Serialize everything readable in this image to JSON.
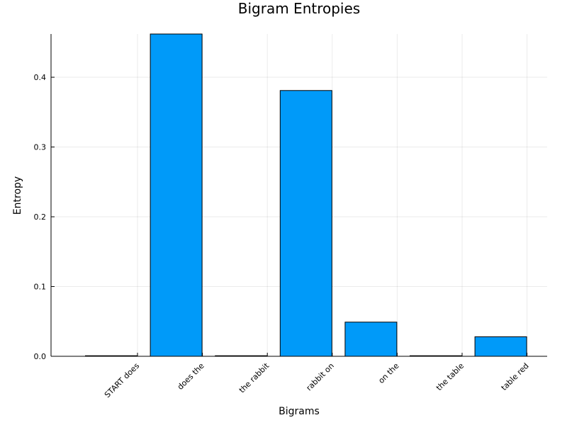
{
  "chart_data": {
    "type": "bar",
    "title": "Bigram Entropies",
    "xlabel": "Bigrams",
    "ylabel": "Entropy",
    "categories": [
      "START does",
      "does the",
      "the rabbit",
      "rabbit on",
      "on the",
      "the table",
      "table red"
    ],
    "values": [
      0.0,
      0.462,
      0.0,
      0.381,
      0.049,
      0.0,
      0.028
    ],
    "ylim": [
      0,
      0.462
    ],
    "yticks": [
      0.0,
      0.1,
      0.2,
      0.3,
      0.4
    ],
    "ytick_labels": [
      "0.0",
      "0.1",
      "0.2",
      "0.3",
      "0.4"
    ],
    "grid": true,
    "legend": "none",
    "bar_color": "#009af9",
    "bar_edge_color": "#000000"
  }
}
